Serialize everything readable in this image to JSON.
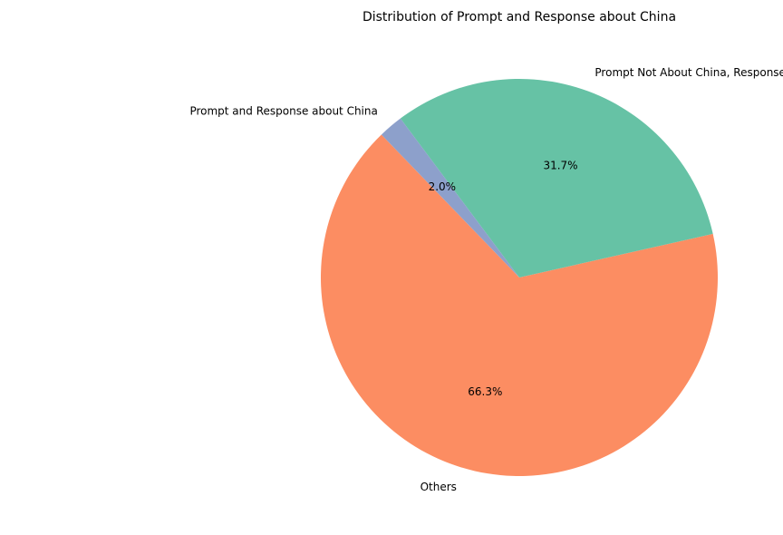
{
  "chart_data": {
    "type": "pie",
    "title": "Distribution of Prompt and Response about China",
    "slices": [
      {
        "label": "Others",
        "value": 66.3,
        "pct_label": "66.3%",
        "color": "#fc8d62"
      },
      {
        "label": "Prompt Not About China, Response About China",
        "value": 31.7,
        "pct_label": "31.7%",
        "color": "#66c2a5"
      },
      {
        "label": "Prompt and Response about China",
        "value": 2.0,
        "pct_label": "2.0%",
        "color": "#8da0cb"
      }
    ],
    "start_angle": 134,
    "direction": "counterclockwise",
    "legend": "none"
  }
}
